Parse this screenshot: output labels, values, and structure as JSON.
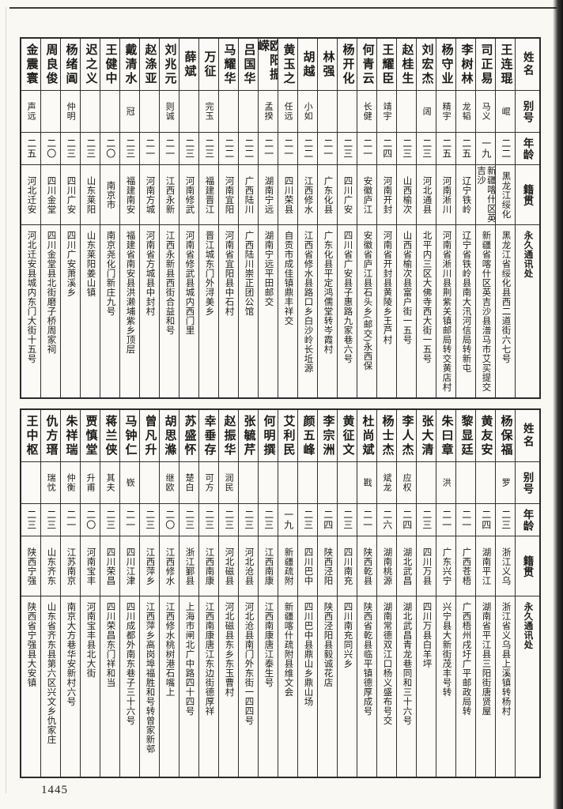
{
  "page": {
    "number": "1445"
  },
  "headers": {
    "name": "姓名",
    "alias": "别号",
    "age": "年龄",
    "native": "籍贯",
    "address": "永久通讯处"
  },
  "tables": [
    {
      "entries": [
        {
          "name": "王连琨",
          "alias": "崐",
          "age": "二二",
          "native": "黑龙江绥化",
          "address": "黑龙江省绥化县西二道街六七号"
        },
        {
          "name": "司正易",
          "alias": "马义",
          "age": "一九",
          "native": "新疆喀什区英吉沙",
          "address": "新疆省喀什区英吉沙县潽马市艾买提交"
        },
        {
          "name": "李树林",
          "alias": "龙韬",
          "age": "二五",
          "native": "辽宁铁岭",
          "address": "辽宁省铁岭县南大汛河信局转新屯"
        },
        {
          "name": "杨守业",
          "alias": "精宇",
          "age": "二五",
          "native": "河南淅川",
          "address": "河南省淅川县荆紫关镇邮局转交黄店村"
        },
        {
          "name": "刘宏杰",
          "alias": "阔",
          "age": "二三",
          "native": "河北通县",
          "address": "北平内三区大佛寺西大街一五号"
        },
        {
          "name": "赵桂生",
          "alias": "",
          "age": "二三",
          "native": "山西榆次",
          "address": "山西省榆次县富户街一五号"
        },
        {
          "name": "王耀臣",
          "alias": "靖宇",
          "age": "二四",
          "native": "河南开封",
          "address": "河南省开封县黄陵乡王芦村"
        },
        {
          "name": "何青云",
          "alias": "长健",
          "age": "二一",
          "native": "安徽庐江",
          "address": "安徽省庐江县石头乡(邮交)永西保"
        },
        {
          "name": "杨开化",
          "alias": "",
          "age": "二三",
          "native": "四川广安",
          "address": "四川省广安县子惠路九家巷六号"
        },
        {
          "name": "林强",
          "alias": "",
          "age": "二一",
          "native": "广东化县",
          "address": "广东化县平定鸿儒堂转岑霞村"
        },
        {
          "name": "胡越",
          "alias": "小如",
          "age": "二二",
          "native": "江西修水",
          "address": "江西省修水县路口乡白沙岭长坵源"
        },
        {
          "name": "黄玉之",
          "alias": "任远",
          "age": "二一",
          "native": "四川荣县",
          "address": "自贡市成佳镇鼎丰祥交"
        },
        {
          "name": "欧阳振嵘",
          "alias": "孟揆",
          "age": "二一",
          "native": "湖南宁远",
          "address": "湖南宁远平田邮交"
        },
        {
          "name": "吕国华",
          "alias": "",
          "age": "二二",
          "native": "广西陆川",
          "address": "广西陆川崇正团公馆"
        },
        {
          "name": "马耀华",
          "alias": "",
          "age": "二二",
          "native": "河南宜阳",
          "address": "河南省宜阳县中石村"
        },
        {
          "name": "万征",
          "alias": "完玉",
          "age": "二三",
          "native": "福建晋江",
          "address": "晋江城东门外浔美乡"
        },
        {
          "name": "薛斌",
          "alias": "",
          "age": "二三",
          "native": "河南修武",
          "address": "河南省修武县城内西门里"
        },
        {
          "name": "刘兆元",
          "alias": "则诚",
          "age": "二一",
          "native": "江西永新",
          "address": "江西永新县西街合益和号"
        },
        {
          "name": "赵涤亚",
          "alias": "",
          "age": "二一",
          "native": "河南方城",
          "address": "河南省方城县中封村"
        },
        {
          "name": "戴清水",
          "alias": "冠",
          "age": "二三",
          "native": "福建南安",
          "address": "福建省南安县洪濑埔紫乡顶层"
        },
        {
          "name": "王健中",
          "alias": "",
          "age": "二〇",
          "native": "南京市",
          "address": "南京尧化门新庄九号"
        },
        {
          "name": "迟之义",
          "alias": "",
          "age": "二三",
          "native": "山东莱阳",
          "address": "山东莱阳姜山镇"
        },
        {
          "name": "杨绪阊",
          "alias": "仲明",
          "age": "二三",
          "native": "四川广安",
          "address": "四川广安萧溪乡"
        },
        {
          "name": "周良俊",
          "alias": "",
          "age": "二〇",
          "native": "四川金堂",
          "address": "四川金堂县北街磨子桥周家祠"
        },
        {
          "name": "金震寰",
          "alias": "声远",
          "age": "二五",
          "native": "河北迁安",
          "address": "河北迁安县城内东门大街十五号"
        }
      ]
    },
    {
      "entries": [
        {
          "name": "杨保福",
          "alias": "罗",
          "age": "二三",
          "native": "浙江义乌",
          "address": "浙江省义乌县上溪镇转杨村"
        },
        {
          "name": "黄友安",
          "alias": "",
          "age": "二四",
          "native": "湖南平江",
          "address": "湖南省平江县三阳街唐贤屋"
        },
        {
          "name": "黎显廷",
          "alias": "",
          "age": "二一",
          "native": "广西苍梧",
          "address": "广西梧州戌圩广平邮政局转"
        },
        {
          "name": "朱曰章",
          "alias": "洪",
          "age": "二一",
          "native": "广东兴宁",
          "address": "兴宁县大新街茂丰号转"
        },
        {
          "name": "张大清",
          "alias": "",
          "age": "二三",
          "native": "四川万县",
          "address": "四川万县白羊坪"
        },
        {
          "name": "李人杰",
          "alias": "应权",
          "age": "二四",
          "native": "湖北武昌",
          "address": "湖北武昌青龙巷同和三十六号"
        },
        {
          "name": "杨士杰",
          "alias": "斌龙",
          "age": "二六",
          "native": "湖南桃源",
          "address": "湖南常德双江口杨义盛布号交"
        },
        {
          "name": "杜尚斌",
          "alias": "戡",
          "age": "二一",
          "native": "陕西乾县",
          "address": "陕西省乾县临平镇德厚成号"
        },
        {
          "name": "黄征文",
          "alias": "",
          "age": "二三",
          "native": "四川南充",
          "address": "四川南充同兴乡"
        },
        {
          "name": "李宗洲",
          "alias": "",
          "age": "二四",
          "native": "陕西泾阳",
          "address": "陕西泾阳县毅诚花店"
        },
        {
          "name": "颜五峰",
          "alias": "",
          "age": "二三",
          "native": "四川巴中",
          "address": "四川巴中县鼎山乡鼎山场"
        },
        {
          "name": "艾利民",
          "alias": "",
          "age": "一九",
          "native": "新疆疏附",
          "address": "新疆喀什疏附县维文会"
        },
        {
          "name": "何明撰",
          "alias": "",
          "age": "二三",
          "native": "江西南康",
          "address": "江西南康唐江泰生号"
        },
        {
          "name": "张毓芹",
          "alias": "",
          "age": "二三",
          "native": "河北沧县",
          "address": "河北沧县南门外东街一四四号"
        },
        {
          "name": "赵振华",
          "alias": "润民",
          "age": "二三",
          "native": "河北磁县",
          "address": "河北磁县东乡东玉曹村"
        },
        {
          "name": "幸垂存",
          "alias": "可方",
          "age": "二三",
          "native": "江西南康",
          "address": "江西南康唐江东边街德厚祥"
        },
        {
          "name": "苏盛怀",
          "alias": "楚白",
          "age": "二三",
          "native": "浙江鄞县",
          "address": "上海市闸北广中路四十四号"
        },
        {
          "name": "胡思滌",
          "alias": "继欧",
          "age": "二〇",
          "native": "江西修水",
          "address": "江西修水桃树港石嘴上"
        },
        {
          "name": "曾凡升",
          "alias": "",
          "age": "二三",
          "native": "江西萍乡",
          "address": "江西萍乡高岗埠福胜和号转曾家新邨"
        },
        {
          "name": "马钟仁",
          "alias": "嵚",
          "age": "二一",
          "native": "四川江津",
          "address": "四川成都外南东巷子三十六号"
        },
        {
          "name": "蒋兰侠",
          "alias": "其夫",
          "age": "二三",
          "native": "四川荣昌",
          "address": "四川荣昌东门祥和当"
        },
        {
          "name": "贾慎堂",
          "alias": "升甫",
          "age": "二〇",
          "native": "河南宝丰",
          "address": "河南宝丰县北大街"
        },
        {
          "name": "朱祥瑞",
          "alias": "仲衡",
          "age": "二一",
          "native": "江苏南京",
          "address": "南京大方巷华安新村六号"
        },
        {
          "name": "仇方瑨",
          "alias": "瑞忱",
          "age": "二三",
          "native": "山东齐东",
          "address": "山东省齐东县第六区兴文乡仇家庄"
        },
        {
          "name": "王中枢",
          "alias": "",
          "age": "二三",
          "native": "陕西宁强",
          "address": "陕西省宁强县大安镇"
        }
      ]
    }
  ]
}
